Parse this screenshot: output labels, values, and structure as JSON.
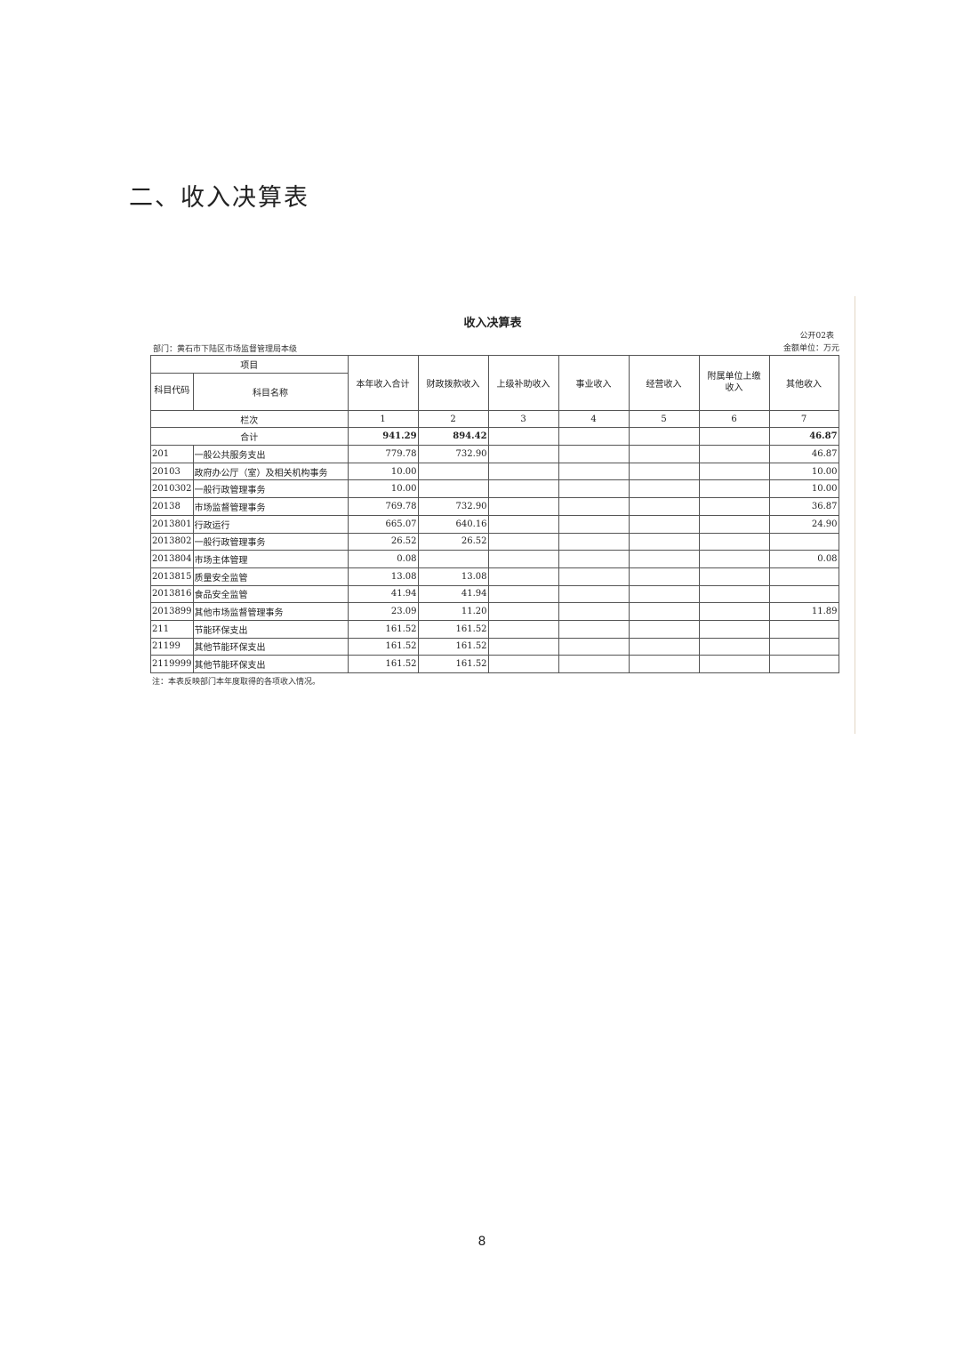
{
  "heading": "二、收入决算表",
  "table_title": "收入决算表",
  "form_no": "公开02表",
  "department": "部门：黄石市下陆区市场监督管理局本级",
  "unit": "金额单位：万元",
  "headers": {
    "item": "项目",
    "code": "科目代码",
    "name": "科目名称",
    "cols": [
      "本年收入合计",
      "财政拨款收入",
      "上级补助收入",
      "事业收入",
      "经营收入",
      "附属单位上缴收入",
      "其他收入"
    ]
  },
  "col_index_label": "栏次",
  "col_index": [
    "1",
    "2",
    "3",
    "4",
    "5",
    "6",
    "7"
  ],
  "total": {
    "label": "合计",
    "values": [
      "941.29",
      "894.42",
      "",
      "",
      "",
      "",
      "46.87"
    ]
  },
  "rows": [
    {
      "code": "201",
      "name": "一般公共服务支出",
      "values": [
        "779.78",
        "732.90",
        "",
        "",
        "",
        "",
        "46.87"
      ]
    },
    {
      "code": "20103",
      "name": "政府办公厅（室）及相关机构事务",
      "values": [
        "10.00",
        "",
        "",
        "",
        "",
        "",
        "10.00"
      ]
    },
    {
      "code": "2010302",
      "name": "一般行政管理事务",
      "values": [
        "10.00",
        "",
        "",
        "",
        "",
        "",
        "10.00"
      ]
    },
    {
      "code": "20138",
      "name": "市场监督管理事务",
      "values": [
        "769.78",
        "732.90",
        "",
        "",
        "",
        "",
        "36.87"
      ]
    },
    {
      "code": "2013801",
      "name": "行政运行",
      "values": [
        "665.07",
        "640.16",
        "",
        "",
        "",
        "",
        "24.90"
      ]
    },
    {
      "code": "2013802",
      "name": "一般行政管理事务",
      "values": [
        "26.52",
        "26.52",
        "",
        "",
        "",
        "",
        ""
      ]
    },
    {
      "code": "2013804",
      "name": "市场主体管理",
      "values": [
        "0.08",
        "",
        "",
        "",
        "",
        "",
        "0.08"
      ]
    },
    {
      "code": "2013815",
      "name": "质量安全监管",
      "values": [
        "13.08",
        "13.08",
        "",
        "",
        "",
        "",
        ""
      ]
    },
    {
      "code": "2013816",
      "name": "食品安全监管",
      "values": [
        "41.94",
        "41.94",
        "",
        "",
        "",
        "",
        ""
      ]
    },
    {
      "code": "2013899",
      "name": "其他市场监督管理事务",
      "values": [
        "23.09",
        "11.20",
        "",
        "",
        "",
        "",
        "11.89"
      ]
    },
    {
      "code": "211",
      "name": "节能环保支出",
      "values": [
        "161.52",
        "161.52",
        "",
        "",
        "",
        "",
        ""
      ]
    },
    {
      "code": "21199",
      "name": "其他节能环保支出",
      "values": [
        "161.52",
        "161.52",
        "",
        "",
        "",
        "",
        ""
      ]
    },
    {
      "code": "2119999",
      "name": "其他节能环保支出",
      "values": [
        "161.52",
        "161.52",
        "",
        "",
        "",
        "",
        ""
      ]
    }
  ],
  "note": "注：本表反映部门本年度取得的各项收入情况。",
  "page_number": "8"
}
